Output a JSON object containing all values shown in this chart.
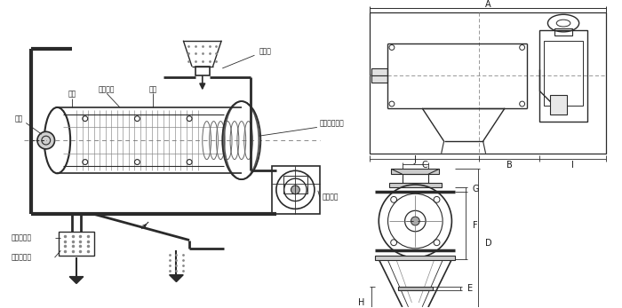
{
  "bg_color": "#ffffff",
  "line_color": "#2a2a2a",
  "text_color": "#1a1a1a",
  "fig_width": 7.0,
  "fig_height": 3.47,
  "dpi": 100,
  "labels": {
    "wind_wheel": "风轮",
    "blade": "风轮叶片",
    "screen": "网架",
    "main_shaft": "主轴",
    "feed_inlet": "进料口",
    "screw_system": "螺旋输送系统",
    "coarse_outlet": "粗料排出口",
    "fine_outlet": "细料排出口",
    "drive_motor": "驱动电机"
  },
  "dim_labels": [
    "A",
    "B",
    "C",
    "I",
    "J",
    "G",
    "F",
    "D",
    "E",
    "H"
  ]
}
